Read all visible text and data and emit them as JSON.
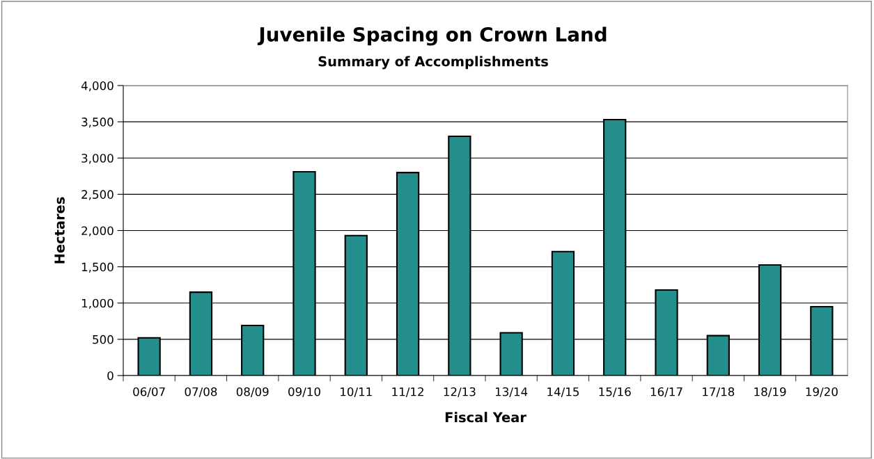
{
  "chart_data": {
    "type": "bar",
    "title": "Juvenile Spacing on Crown Land",
    "subtitle": "Summary of Accomplishments",
    "xlabel": "Fiscal Year",
    "ylabel": "Hectares",
    "categories": [
      "06/07",
      "07/08",
      "08/09",
      "09/10",
      "10/11",
      "11/12",
      "12/13",
      "13/14",
      "14/15",
      "15/16",
      "16/17",
      "17/18",
      "18/19",
      "19/20"
    ],
    "values": [
      520,
      1150,
      690,
      2810,
      1930,
      2800,
      3300,
      590,
      1710,
      3530,
      1180,
      550,
      1525,
      950
    ],
    "color": "#238e8c",
    "ylim": [
      0,
      4000
    ],
    "yticks": [
      {
        "value": 0,
        "label": "0"
      },
      {
        "value": 500,
        "label": "500"
      },
      {
        "value": 1000,
        "label": "1,000"
      },
      {
        "value": 1500,
        "label": "1,500"
      },
      {
        "value": 2000,
        "label": "2,000"
      },
      {
        "value": 2500,
        "label": "2,500"
      },
      {
        "value": 3000,
        "label": "3,000"
      },
      {
        "value": 3500,
        "label": "3,500"
      },
      {
        "value": 4000,
        "label": "4,000"
      }
    ],
    "grid": "y",
    "legend": false
  }
}
